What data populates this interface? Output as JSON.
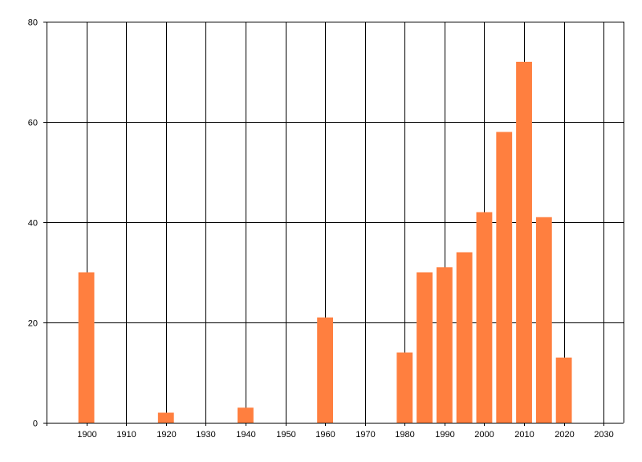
{
  "chart_data": {
    "type": "bar",
    "title": "",
    "xlabel": "",
    "ylabel": "",
    "x": [
      1900,
      1920,
      1940,
      1960,
      1980,
      1985,
      1990,
      1995,
      2000,
      2005,
      2010,
      2015,
      2020
    ],
    "values": [
      30,
      2,
      3,
      21,
      14,
      30,
      31,
      34,
      42,
      58,
      72,
      41,
      13
    ],
    "xlim": [
      1890,
      2035
    ],
    "ylim": [
      0,
      80
    ],
    "x_ticks": [
      1900,
      1910,
      1920,
      1930,
      1940,
      1950,
      1960,
      1970,
      1980,
      1990,
      2000,
      2010,
      2020,
      2030
    ],
    "y_ticks": [
      0,
      20,
      40,
      60,
      80
    ],
    "bar_width_years": 4,
    "grid": "both",
    "legend": "none",
    "bar_color": "#ff7f3f",
    "grid_color": "#000000"
  }
}
